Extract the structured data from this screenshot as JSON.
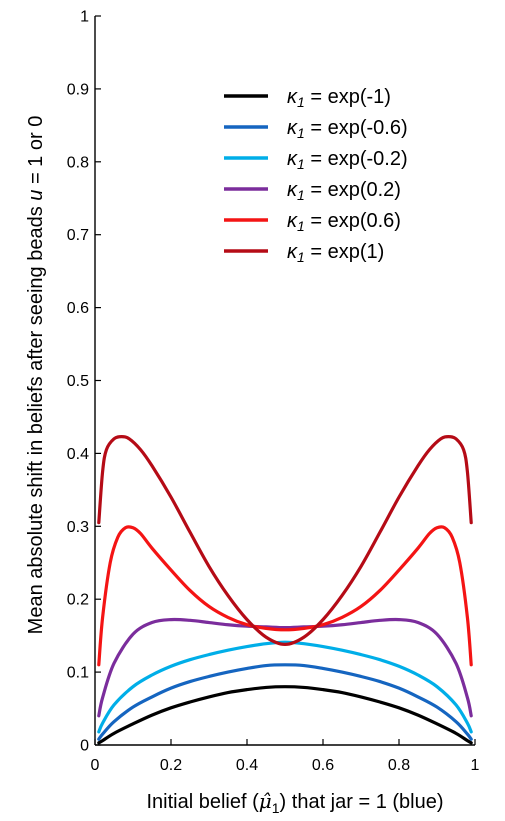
{
  "chart_data": {
    "type": "line",
    "xlabel": {
      "prefix": "Initial belief (",
      "symbol": "μ̂",
      "subscript": "1",
      "suffix": ") that jar = 1 (blue)"
    },
    "ylabel": {
      "prefix": "Mean absolute shift in beliefs after seeing beads ",
      "variable": "u",
      "suffix": " = 1 or 0"
    },
    "xlim": [
      0,
      1
    ],
    "ylim": [
      0,
      1
    ],
    "x_ticks": [
      {
        "value": 0,
        "label": "0"
      },
      {
        "value": 0.2,
        "label": "0.2"
      },
      {
        "value": 0.4,
        "label": "0.4"
      },
      {
        "value": 0.6,
        "label": "0.6"
      },
      {
        "value": 0.8,
        "label": "0.8"
      },
      {
        "value": 1,
        "label": "1"
      }
    ],
    "y_ticks": [
      {
        "value": 0,
        "label": "0"
      },
      {
        "value": 0.1,
        "label": "0.1"
      },
      {
        "value": 0.2,
        "label": "0.2"
      },
      {
        "value": 0.3,
        "label": "0.3"
      },
      {
        "value": 0.4,
        "label": "0.4"
      },
      {
        "value": 0.5,
        "label": "0.5"
      },
      {
        "value": 0.6,
        "label": "0.6"
      },
      {
        "value": 0.7,
        "label": "0.7"
      },
      {
        "value": 0.8,
        "label": "0.8"
      },
      {
        "value": 0.9,
        "label": "0.9"
      },
      {
        "value": 1,
        "label": "1"
      }
    ],
    "grid": false,
    "legend_position": "top-right",
    "series": [
      {
        "name": "κ1 = exp(-1)",
        "legend": {
          "symbol": "κ",
          "subscript": "1",
          "text": " = exp(-1)"
        },
        "color": "#000000",
        "x": [
          0.01,
          0.02,
          0.05,
          0.1,
          0.15,
          0.2,
          0.25,
          0.3,
          0.35,
          0.4,
          0.45,
          0.5,
          0.55,
          0.6,
          0.65,
          0.7,
          0.75,
          0.8,
          0.85,
          0.9,
          0.95,
          0.98,
          0.99
        ],
        "y": [
          0.003,
          0.006,
          0.016,
          0.029,
          0.041,
          0.051,
          0.059,
          0.066,
          0.072,
          0.076,
          0.079,
          0.08,
          0.079,
          0.076,
          0.072,
          0.066,
          0.059,
          0.051,
          0.041,
          0.029,
          0.016,
          0.006,
          0.003
        ]
      },
      {
        "name": "κ1 = exp(-0.6)",
        "legend": {
          "symbol": "κ",
          "subscript": "1",
          "text": " = exp(-0.6)"
        },
        "color": "#1565c0",
        "x": [
          0.01,
          0.02,
          0.05,
          0.1,
          0.15,
          0.2,
          0.25,
          0.3,
          0.35,
          0.4,
          0.45,
          0.5,
          0.55,
          0.6,
          0.65,
          0.7,
          0.75,
          0.8,
          0.85,
          0.9,
          0.95,
          0.98,
          0.99
        ],
        "y": [
          0.008,
          0.015,
          0.032,
          0.052,
          0.066,
          0.078,
          0.087,
          0.094,
          0.1,
          0.105,
          0.109,
          0.11,
          0.109,
          0.105,
          0.1,
          0.094,
          0.087,
          0.078,
          0.066,
          0.052,
          0.032,
          0.015,
          0.008
        ]
      },
      {
        "name": "κ1 = exp(-0.2)",
        "legend": {
          "symbol": "κ",
          "subscript": "1",
          "text": " = exp(-0.2)"
        },
        "color": "#00aee8",
        "x": [
          0.01,
          0.02,
          0.05,
          0.1,
          0.15,
          0.2,
          0.25,
          0.3,
          0.35,
          0.4,
          0.45,
          0.5,
          0.55,
          0.6,
          0.65,
          0.7,
          0.75,
          0.8,
          0.85,
          0.9,
          0.95,
          0.98,
          0.99
        ],
        "y": [
          0.018,
          0.03,
          0.055,
          0.08,
          0.096,
          0.108,
          0.117,
          0.124,
          0.13,
          0.135,
          0.139,
          0.141,
          0.139,
          0.135,
          0.13,
          0.124,
          0.117,
          0.108,
          0.096,
          0.08,
          0.055,
          0.03,
          0.018
        ]
      },
      {
        "name": "κ1 = exp(0.2)",
        "legend": {
          "symbol": "κ",
          "subscript": "1",
          "text": " = exp(0.2)"
        },
        "color": "#7b2d9c",
        "x": [
          0.01,
          0.02,
          0.05,
          0.1,
          0.15,
          0.2,
          0.25,
          0.3,
          0.35,
          0.4,
          0.45,
          0.5,
          0.55,
          0.6,
          0.65,
          0.7,
          0.75,
          0.8,
          0.85,
          0.9,
          0.95,
          0.98,
          0.99
        ],
        "y": [
          0.04,
          0.065,
          0.112,
          0.152,
          0.168,
          0.172,
          0.171,
          0.168,
          0.165,
          0.163,
          0.162,
          0.161,
          0.162,
          0.163,
          0.165,
          0.168,
          0.171,
          0.172,
          0.168,
          0.152,
          0.112,
          0.065,
          0.04
        ]
      },
      {
        "name": "κ1 = exp(0.6)",
        "legend": {
          "symbol": "κ",
          "subscript": "1",
          "text": " = exp(0.6)"
        },
        "color": "#f41414",
        "x": [
          0.01,
          0.02,
          0.04,
          0.06,
          0.08,
          0.1,
          0.12,
          0.15,
          0.2,
          0.25,
          0.3,
          0.35,
          0.4,
          0.45,
          0.5,
          0.55,
          0.6,
          0.65,
          0.7,
          0.75,
          0.8,
          0.85,
          0.88,
          0.9,
          0.92,
          0.94,
          0.96,
          0.98,
          0.99
        ],
        "y": [
          0.11,
          0.175,
          0.25,
          0.285,
          0.298,
          0.298,
          0.29,
          0.27,
          0.24,
          0.212,
          0.19,
          0.175,
          0.165,
          0.16,
          0.158,
          0.16,
          0.165,
          0.175,
          0.19,
          0.212,
          0.24,
          0.27,
          0.29,
          0.298,
          0.298,
          0.285,
          0.25,
          0.175,
          0.11
        ]
      },
      {
        "name": "κ1 = exp(1)",
        "legend": {
          "symbol": "κ",
          "subscript": "1",
          "text": " = exp(1)"
        },
        "color": "#b50b16",
        "x": [
          0.01,
          0.02,
          0.03,
          0.05,
          0.07,
          0.09,
          0.12,
          0.15,
          0.2,
          0.25,
          0.3,
          0.35,
          0.4,
          0.45,
          0.5,
          0.55,
          0.6,
          0.65,
          0.7,
          0.75,
          0.8,
          0.85,
          0.88,
          0.91,
          0.93,
          0.95,
          0.97,
          0.98,
          0.99
        ],
        "y": [
          0.305,
          0.375,
          0.405,
          0.42,
          0.423,
          0.42,
          0.405,
          0.383,
          0.34,
          0.292,
          0.245,
          0.205,
          0.172,
          0.148,
          0.138,
          0.148,
          0.172,
          0.205,
          0.245,
          0.292,
          0.34,
          0.383,
          0.405,
          0.42,
          0.423,
          0.42,
          0.405,
          0.375,
          0.305
        ]
      }
    ]
  }
}
